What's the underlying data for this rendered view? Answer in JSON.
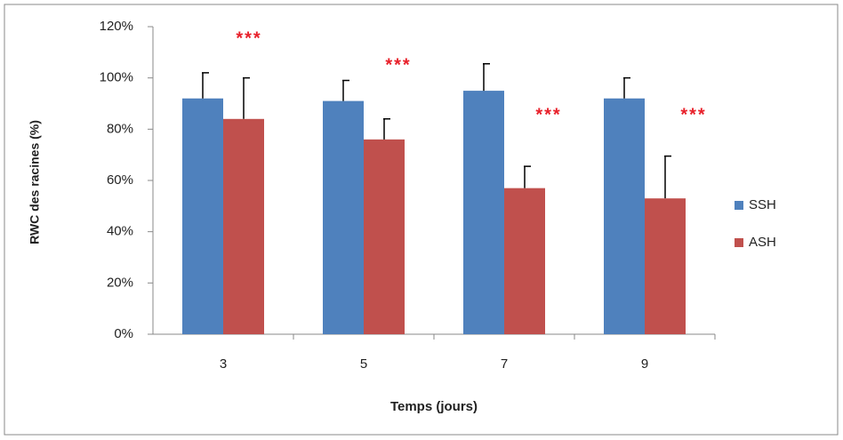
{
  "chart_data": {
    "type": "bar",
    "y_axis_label": "RWC des racines (%)",
    "x_axis_label": "Temps (jours)",
    "categories": [
      "3",
      "5",
      "7",
      "9"
    ],
    "series": [
      {
        "name": "SSH",
        "color": "#4f81bd",
        "values": [
          92,
          91,
          95,
          92
        ],
        "errors": [
          10,
          8,
          10.5,
          8
        ]
      },
      {
        "name": "ASH",
        "color": "#c0504d",
        "values": [
          84,
          76,
          57,
          53
        ],
        "errors": [
          16,
          8,
          8.5,
          16.5
        ]
      }
    ],
    "annotations": [
      "***",
      "***",
      "***",
      "***"
    ],
    "ylim": [
      0,
      120
    ],
    "yticks": [
      {
        "value": 0,
        "label": "0%"
      },
      {
        "value": 20,
        "label": "20%"
      },
      {
        "value": 40,
        "label": "40%"
      },
      {
        "value": 60,
        "label": "60%"
      },
      {
        "value": 80,
        "label": "80%"
      },
      {
        "value": 100,
        "label": "100%"
      },
      {
        "value": 120,
        "label": "120%"
      }
    ],
    "legend": "right"
  }
}
